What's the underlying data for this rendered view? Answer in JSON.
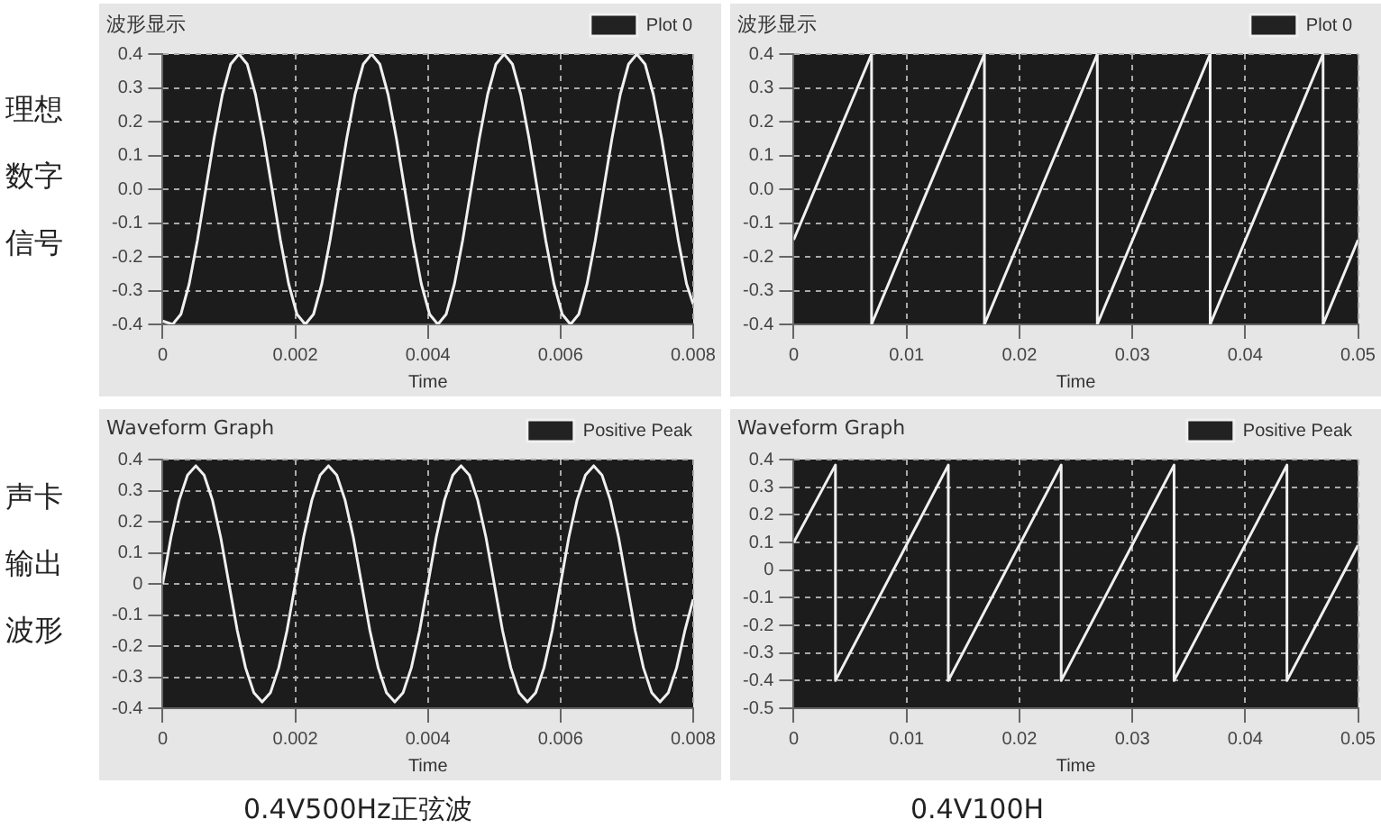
{
  "chart_data": [
    {
      "type": "line",
      "title": "波形显示",
      "xlabel": "Time",
      "annotations": [
        "理想数字信号"
      ],
      "legend": "top right",
      "grid": true,
      "marker": "none",
      "line_style": "solid",
      "xlim": [
        0,
        0.008
      ],
      "xticks": [
        0,
        0.002,
        0.004,
        0.006,
        0.008
      ],
      "ylim": [
        -0.4,
        0.4
      ],
      "yticks": [
        -0.4,
        -0.3,
        -0.2,
        -0.1,
        {
          "value": 0,
          "label": "0.0"
        },
        0.1,
        0.2,
        0.3,
        0.4
      ],
      "series": [
        {
          "name": "Plot 0",
          "color": "#f0f0f0",
          "x": [
            0,
            0.00015,
            0.000275,
            0.0004,
            0.000525,
            0.00065,
            0.000775,
            0.0009,
            0.001025,
            0.00115,
            0.001275,
            0.0014,
            0.001525,
            0.00165,
            0.001775,
            0.0019,
            0.002025,
            0.00215,
            0.002275,
            0.0024,
            0.002525,
            0.00265,
            0.002775,
            0.0029,
            0.003025,
            0.00315,
            0.003275,
            0.0034,
            0.003525,
            0.00365,
            0.003775,
            0.0039,
            0.004025,
            0.00415,
            0.004275,
            0.0044,
            0.004525,
            0.00465,
            0.004775,
            0.0049,
            0.005025,
            0.00515,
            0.005275,
            0.0054,
            0.005525,
            0.00565,
            0.005775,
            0.0059,
            0.006025,
            0.00615,
            0.006275,
            0.0064,
            0.006525,
            0.00665,
            0.006775,
            0.0069,
            0.007025,
            0.00715,
            0.007275,
            0.0074,
            0.007525,
            0.00765,
            0.007775,
            0.0079,
            0.008
          ],
          "values": [
            -0.39,
            -0.4,
            -0.37,
            -0.28,
            -0.15,
            0,
            0.15,
            0.28,
            0.37,
            0.4,
            0.37,
            0.28,
            0.15,
            0,
            -0.15,
            -0.28,
            -0.37,
            -0.4,
            -0.37,
            -0.28,
            -0.15,
            0,
            0.15,
            0.28,
            0.37,
            0.4,
            0.37,
            0.28,
            0.15,
            0,
            -0.15,
            -0.28,
            -0.37,
            -0.4,
            -0.37,
            -0.28,
            -0.15,
            0,
            0.15,
            0.28,
            0.37,
            0.4,
            0.37,
            0.28,
            0.15,
            0,
            -0.15,
            -0.28,
            -0.37,
            -0.4,
            -0.37,
            -0.28,
            -0.15,
            0,
            0.15,
            0.28,
            0.37,
            0.4,
            0.37,
            0.28,
            0.15,
            0,
            -0.15,
            -0.28,
            -0.34
          ]
        }
      ]
    },
    {
      "type": "line",
      "title": "波形显示",
      "xlabel": "Time",
      "legend": "top right",
      "grid": true,
      "marker": "none",
      "line_style": "solid",
      "xlim": [
        0,
        0.05
      ],
      "xticks": [
        0,
        0.01,
        0.02,
        0.03,
        0.04,
        0.05
      ],
      "ylim": [
        -0.4,
        0.4
      ],
      "yticks": [
        -0.4,
        -0.3,
        -0.2,
        -0.1,
        {
          "value": 0,
          "label": "0.0"
        },
        0.1,
        0.2,
        0.3,
        0.4
      ],
      "series": [
        {
          "name": "Plot 0",
          "color": "#f0f0f0",
          "x": [
            0,
            0.0069,
            0.0069,
            0.0169,
            0.0169,
            0.0269,
            0.0269,
            0.0369,
            0.0369,
            0.0469,
            0.0469,
            0.05
          ],
          "values": [
            -0.15,
            0.4,
            -0.4,
            0.4,
            -0.4,
            0.4,
            -0.4,
            0.4,
            -0.4,
            0.4,
            -0.4,
            -0.15
          ]
        }
      ]
    },
    {
      "type": "line",
      "title": "Waveform Graph",
      "xlabel": "Time",
      "annotations": [
        "声卡输出波形",
        "0.4V500Hz正弦波"
      ],
      "legend": "top right",
      "grid": true,
      "marker": "none",
      "line_style": "solid",
      "xlim": [
        0,
        0.008
      ],
      "xticks": [
        0,
        0.002,
        0.004,
        0.006,
        0.008
      ],
      "ylim": [
        -0.4,
        0.4
      ],
      "yticks": [
        -0.4,
        -0.3,
        -0.2,
        -0.1,
        0,
        0.1,
        0.2,
        0.3,
        0.4
      ],
      "series": [
        {
          "name": "Positive Peak",
          "color": "#f0f0f0",
          "x": [
            0,
            0.000125,
            0.00025,
            0.000375,
            0.0005,
            0.000625,
            0.00075,
            0.000875,
            0.001,
            0.001125,
            0.00125,
            0.001375,
            0.0015,
            0.001625,
            0.00175,
            0.001875,
            0.002,
            0.002125,
            0.00225,
            0.002375,
            0.0025,
            0.002625,
            0.00275,
            0.002875,
            0.003,
            0.003125,
            0.00325,
            0.003375,
            0.0035,
            0.003625,
            0.00375,
            0.003875,
            0.004,
            0.004125,
            0.00425,
            0.004375,
            0.0045,
            0.004625,
            0.00475,
            0.004875,
            0.005,
            0.005125,
            0.00525,
            0.005375,
            0.0055,
            0.005625,
            0.00575,
            0.005875,
            0.006,
            0.006125,
            0.00625,
            0.006375,
            0.0065,
            0.006625,
            0.00675,
            0.006875,
            0.007,
            0.007125,
            0.00725,
            0.007375,
            0.0075,
            0.007625,
            0.00775,
            0.007875,
            0.008
          ],
          "values": [
            0,
            0.15,
            0.27,
            0.35,
            0.38,
            0.35,
            0.27,
            0.15,
            0,
            -0.15,
            -0.27,
            -0.35,
            -0.38,
            -0.35,
            -0.27,
            -0.15,
            0,
            0.15,
            0.27,
            0.35,
            0.38,
            0.35,
            0.27,
            0.15,
            0,
            -0.15,
            -0.27,
            -0.35,
            -0.38,
            -0.35,
            -0.27,
            -0.15,
            0,
            0.15,
            0.27,
            0.35,
            0.38,
            0.35,
            0.27,
            0.15,
            0,
            -0.15,
            -0.27,
            -0.35,
            -0.38,
            -0.35,
            -0.27,
            -0.15,
            0,
            0.15,
            0.27,
            0.35,
            0.38,
            0.35,
            0.27,
            0.15,
            0,
            -0.15,
            -0.27,
            -0.35,
            -0.38,
            -0.35,
            -0.27,
            -0.15,
            -0.05
          ]
        }
      ]
    },
    {
      "type": "line",
      "title": "Waveform Graph",
      "xlabel": "Time",
      "annotations": [
        "0.4V100H"
      ],
      "legend": "top right",
      "grid": true,
      "marker": "none",
      "line_style": "solid",
      "xlim": [
        0,
        0.05
      ],
      "xticks": [
        0,
        0.01,
        0.02,
        0.03,
        0.04,
        0.05
      ],
      "ylim": [
        -0.5,
        0.4
      ],
      "yticks": [
        -0.5,
        -0.4,
        -0.3,
        -0.2,
        -0.1,
        0,
        0.1,
        0.2,
        0.3,
        0.4
      ],
      "series": [
        {
          "name": "Positive Peak",
          "color": "#f0f0f0",
          "x": [
            0,
            0.0037,
            0.0037,
            0.0137,
            0.0137,
            0.0237,
            0.0237,
            0.0337,
            0.0337,
            0.0437,
            0.0437,
            0.05
          ],
          "values": [
            0.1,
            0.38,
            -0.4,
            0.38,
            -0.4,
            0.38,
            -0.4,
            0.38,
            -0.4,
            0.38,
            -0.4,
            0.09
          ]
        }
      ]
    }
  ]
}
